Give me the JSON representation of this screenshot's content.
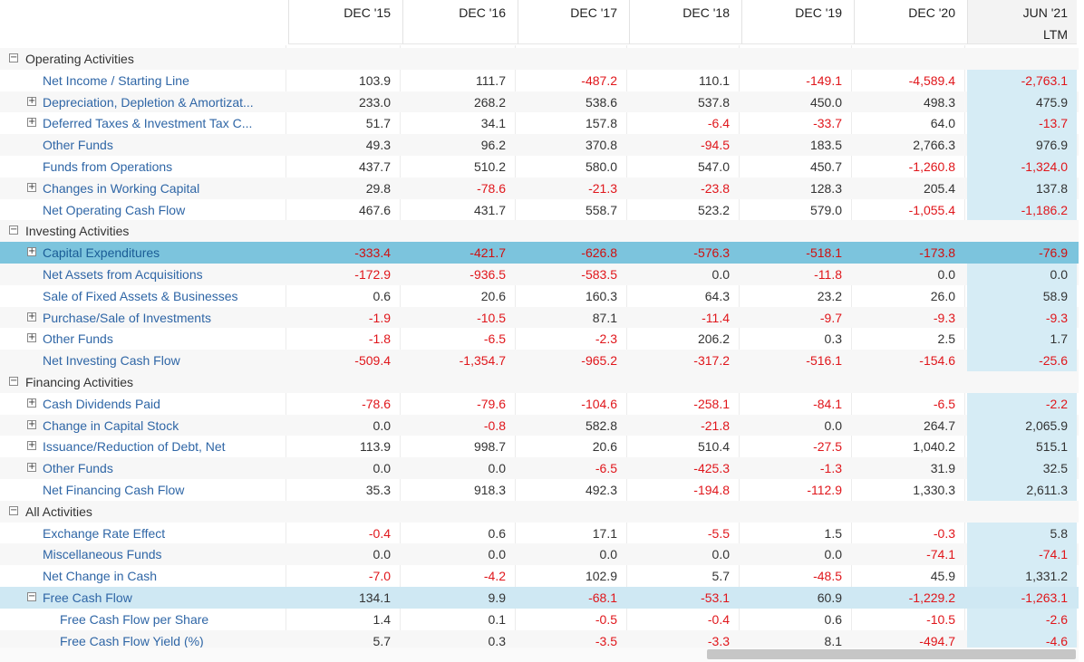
{
  "columns": [
    "DEC '15",
    "DEC '16",
    "DEC '17",
    "DEC '18",
    "DEC '19",
    "DEC '20",
    "JUN '21"
  ],
  "ltm_label": "LTM",
  "rows": [
    {
      "type": "section",
      "label": "Operating Activities",
      "toggle": "−"
    },
    {
      "label": "Net Income / Starting Line",
      "values": [
        "103.9",
        "111.7",
        "-487.2",
        "110.1",
        "-149.1",
        "-4,589.4",
        "-2,763.1"
      ]
    },
    {
      "label": "Depreciation, Depletion & Amortizat...",
      "toggle": "+",
      "values": [
        "233.0",
        "268.2",
        "538.6",
        "537.8",
        "450.0",
        "498.3",
        "475.9"
      ]
    },
    {
      "label": "Deferred Taxes & Investment Tax C...",
      "toggle": "+",
      "values": [
        "51.7",
        "34.1",
        "157.8",
        "-6.4",
        "-33.7",
        "64.0",
        "-13.7"
      ]
    },
    {
      "label": "Other Funds",
      "values": [
        "49.3",
        "96.2",
        "370.8",
        "-94.5",
        "183.5",
        "2,766.3",
        "976.9"
      ]
    },
    {
      "label": "Funds from Operations",
      "values": [
        "437.7",
        "510.2",
        "580.0",
        "547.0",
        "450.7",
        "-1,260.8",
        "-1,324.0"
      ]
    },
    {
      "label": "Changes in Working Capital",
      "toggle": "+",
      "values": [
        "29.8",
        "-78.6",
        "-21.3",
        "-23.8",
        "128.3",
        "205.4",
        "137.8"
      ]
    },
    {
      "label": "Net Operating Cash Flow",
      "values": [
        "467.6",
        "431.7",
        "558.7",
        "523.2",
        "579.0",
        "-1,055.4",
        "-1,186.2"
      ]
    },
    {
      "type": "section",
      "label": "Investing Activities",
      "toggle": "−"
    },
    {
      "label": "Capital Expenditures",
      "toggle": "+",
      "selected": true,
      "values": [
        "-333.4",
        "-421.7",
        "-626.8",
        "-576.3",
        "-518.1",
        "-173.8",
        "-76.9"
      ]
    },
    {
      "label": "Net Assets from Acquisitions",
      "values": [
        "-172.9",
        "-936.5",
        "-583.5",
        "0.0",
        "-11.8",
        "0.0",
        "0.0"
      ]
    },
    {
      "label": "Sale of Fixed Assets & Businesses",
      "values": [
        "0.6",
        "20.6",
        "160.3",
        "64.3",
        "23.2",
        "26.0",
        "58.9"
      ]
    },
    {
      "label": "Purchase/Sale of Investments",
      "toggle": "+",
      "values": [
        "-1.9",
        "-10.5",
        "87.1",
        "-11.4",
        "-9.7",
        "-9.3",
        "-9.3"
      ]
    },
    {
      "label": "Other Funds",
      "toggle": "+",
      "values": [
        "-1.8",
        "-6.5",
        "-2.3",
        "206.2",
        "0.3",
        "2.5",
        "1.7"
      ]
    },
    {
      "label": "Net Investing Cash Flow",
      "values": [
        "-509.4",
        "-1,354.7",
        "-965.2",
        "-317.2",
        "-516.1",
        "-154.6",
        "-25.6"
      ]
    },
    {
      "type": "section",
      "label": "Financing Activities",
      "toggle": "−"
    },
    {
      "label": "Cash Dividends Paid",
      "toggle": "+",
      "values": [
        "-78.6",
        "-79.6",
        "-104.6",
        "-258.1",
        "-84.1",
        "-6.5",
        "-2.2"
      ]
    },
    {
      "label": "Change in Capital Stock",
      "toggle": "+",
      "values": [
        "0.0",
        "-0.8",
        "582.8",
        "-21.8",
        "0.0",
        "264.7",
        "2,065.9"
      ]
    },
    {
      "label": "Issuance/Reduction of Debt, Net",
      "toggle": "+",
      "values": [
        "113.9",
        "998.7",
        "20.6",
        "510.4",
        "-27.5",
        "1,040.2",
        "515.1"
      ]
    },
    {
      "label": "Other Funds",
      "toggle": "+",
      "values": [
        "0.0",
        "0.0",
        "-6.5",
        "-425.3",
        "-1.3",
        "31.9",
        "32.5"
      ]
    },
    {
      "label": "Net Financing Cash Flow",
      "values": [
        "35.3",
        "918.3",
        "492.3",
        "-194.8",
        "-112.9",
        "1,330.3",
        "2,611.3"
      ]
    },
    {
      "type": "section",
      "label": "All Activities",
      "toggle": "−"
    },
    {
      "label": "Exchange Rate Effect",
      "values": [
        "-0.4",
        "0.6",
        "17.1",
        "-5.5",
        "1.5",
        "-0.3",
        "5.8"
      ]
    },
    {
      "label": "Miscellaneous Funds",
      "values": [
        "0.0",
        "0.0",
        "0.0",
        "0.0",
        "0.0",
        "-74.1",
        "-74.1"
      ]
    },
    {
      "label": "Net Change in Cash",
      "values": [
        "-7.0",
        "-4.2",
        "102.9",
        "5.7",
        "-48.5",
        "45.9",
        "1,331.2"
      ]
    },
    {
      "label": "Free Cash Flow",
      "toggle": "−",
      "fcf": true,
      "values": [
        "134.1",
        "9.9",
        "-68.1",
        "-53.1",
        "60.9",
        "-1,229.2",
        "-1,263.1"
      ]
    },
    {
      "label": "Free Cash Flow per Share",
      "indent": 2,
      "values": [
        "1.4",
        "0.1",
        "-0.5",
        "-0.4",
        "0.6",
        "-10.5",
        "-2.6"
      ]
    },
    {
      "label": "Free Cash Flow Yield (%)",
      "indent": 2,
      "values": [
        "5.7",
        "0.3",
        "-3.5",
        "-3.3",
        "8.1",
        "-494.7",
        "-4.6"
      ]
    }
  ],
  "colors": {
    "positive": "#333333",
    "negative": "#e0161b",
    "label": "#2f66a6",
    "selected_row": "#7cc4dd",
    "ltm_column": "#d6ecf5"
  }
}
